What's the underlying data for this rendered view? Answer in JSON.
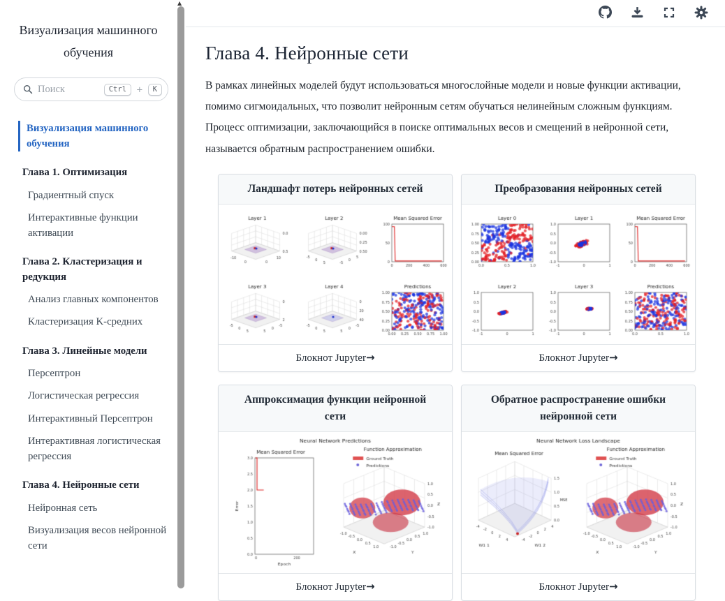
{
  "colors": {
    "accent_blue": "#2465c2",
    "icon": "#3d4856",
    "scrollbar": "#9b9b9b",
    "card_header_bg": "#f7f9fa",
    "card_border": "#d9dee3",
    "scatter_red": "rgba(227,30,36,0.72)",
    "scatter_blue": "rgba(28,52,225,0.72)",
    "mse_line": "#dd2222",
    "surface_red": "rgba(217,70,80,0.8)",
    "surface_blue": "rgba(124,131,232,0.35)",
    "patch_purple": "rgba(148,103,189,0.35)"
  },
  "sidebar": {
    "title": "Визуализация машинного обучения",
    "search": {
      "placeholder": "Поиск",
      "kbd_ctrl": "Ctrl",
      "kbd_plus": "+",
      "kbd_k": "K"
    },
    "sections": [
      {
        "id": "root",
        "items": [
          {
            "id": "ml-visualization",
            "label": "Визуализация машинного обучения",
            "active": true
          }
        ]
      },
      {
        "id": "chapter-1",
        "caption": "Глава 1. Оптимизация",
        "items": [
          {
            "id": "gradient-descent",
            "label": "Градиентный спуск"
          },
          {
            "id": "interactive-activations",
            "label": "Интерактивные функции активации"
          }
        ]
      },
      {
        "id": "chapter-2",
        "caption": "Глава 2. Кластеризация и редукция",
        "items": [
          {
            "id": "pca",
            "label": "Анализ главных компонентов"
          },
          {
            "id": "kmeans",
            "label": "Кластеризация K-средних"
          }
        ]
      },
      {
        "id": "chapter-3",
        "caption": "Глава 3. Линейные модели",
        "items": [
          {
            "id": "perceptron",
            "label": "Персептрон"
          },
          {
            "id": "logistic-regression",
            "label": "Логистическая регрессия"
          },
          {
            "id": "interactive-perceptron",
            "label": "Интерактивный Персептрон"
          },
          {
            "id": "interactive-logistic-regression",
            "label": "Интерактивная логистическая регрессия"
          }
        ]
      },
      {
        "id": "chapter-4",
        "caption": "Глава 4. Нейронные сети",
        "items": [
          {
            "id": "neural-network",
            "label": "Нейронная сеть"
          },
          {
            "id": "nn-weights-visualization",
            "label": "Визуализация весов нейронной сети"
          }
        ]
      }
    ]
  },
  "topbar": {
    "icons": [
      {
        "name": "github-icon"
      },
      {
        "name": "download-icon"
      },
      {
        "name": "fullscreen-icon"
      },
      {
        "name": "settings-gear-icon"
      }
    ]
  },
  "main": {
    "heading": "Глава 4. Нейронные сети",
    "intro": "В рамках линейных моделей будут использоваться многослойные модели и новые функции активации, помимо сигмоидальных, что позволит нейронным сетям обучаться нелинейным сложным функциям. Процесс оптимизации, заключающийся в поиске оптимальных весов и смещений в нейронной сети, называется обратным распространением ошибки."
  },
  "cards": [
    {
      "title": "Ландшафт потерь нейронных сетей"
    },
    {
      "title": "Преобразования нейронных сетей"
    },
    {
      "title": "Аппроксимация функции нейронной сети"
    },
    {
      "title": "Обратное распространение ошибки нейронной сети"
    }
  ],
  "card_footer": {
    "label": "Блокнот Jupyter",
    "arrow": "→"
  },
  "chart_data": [
    {
      "id": "nn-loss-landscape-grid",
      "type": "mixed",
      "layout": "grid",
      "panels": [
        {
          "type": "surface3d",
          "title": "Layer 1",
          "zticks": [
            "0.5",
            "0.0"
          ],
          "xticks": [
            "-10",
            "0"
          ],
          "yticks": [
            "0",
            "10"
          ]
        },
        {
          "type": "surface3d",
          "title": "Layer 2",
          "zticks": [
            "0.50",
            "0.25",
            "0.00"
          ],
          "xticks": [
            "-5",
            "0",
            "5"
          ],
          "yticks": [
            "-5",
            "0",
            "5"
          ]
        },
        {
          "type": "mse",
          "title": "Mean Squared Error",
          "yticks": [
            "0",
            "50",
            "100"
          ],
          "xticks": [
            "0",
            "200",
            "400",
            "600"
          ],
          "path": [
            [
              0.0,
              0.93
            ],
            [
              0.05,
              0.93
            ],
            [
              0.065,
              0.02
            ],
            [
              0.97,
              0.02
            ]
          ]
        },
        {
          "type": "surface3d",
          "title": "Layer 3",
          "zticks": [
            "2",
            "0"
          ],
          "xticks": [
            "-5",
            "0",
            "5"
          ],
          "yticks": [
            "5",
            "0",
            "-5"
          ]
        },
        {
          "type": "surface3d",
          "title": "Layer 4",
          "zticks": [
            "40",
            "20",
            "0"
          ],
          "xticks": [
            "-5",
            "0",
            "5"
          ],
          "yticks": [
            "5",
            "0",
            "-5"
          ],
          "blue_only": true
        },
        {
          "type": "scatter",
          "title": "Predictions",
          "xticks": [
            "0.00",
            "0.25",
            "0.50",
            "0.75",
            "1.00"
          ],
          "yticks": [
            "0.00",
            "0.25",
            "0.50",
            "0.75",
            "1.00"
          ],
          "n": 300,
          "seed": 7
        }
      ]
    },
    {
      "id": "nn-transformations-grid",
      "type": "mixed",
      "layout": "grid",
      "panels": [
        {
          "type": "xor",
          "title": "Layer 0",
          "xticks": [
            "0.0",
            "0.5",
            "1.0"
          ],
          "yticks": [
            "0.00",
            "0.25",
            "0.50",
            "0.75",
            "1.00"
          ],
          "n": 320,
          "seed": 11
        },
        {
          "type": "blob",
          "title": "Layer 1",
          "xticks": [
            "-1",
            "0",
            "1"
          ],
          "yticks": [
            "-1.0",
            "-0.5",
            "0.0",
            "0.5",
            "1.0"
          ],
          "cx": -0.06,
          "cy": -0.05,
          "rx": 0.14,
          "ry": 0.3,
          "rot": -60,
          "n": 170,
          "seed": 5
        },
        {
          "type": "mse",
          "title": "Mean Squared Error",
          "yticks": [
            "0",
            "50",
            "100"
          ],
          "xticks": [
            "0",
            "200",
            "400",
            "600"
          ],
          "path": [
            [
              0.0,
              0.93
            ],
            [
              0.05,
              0.93
            ],
            [
              0.065,
              0.02
            ],
            [
              0.97,
              0.02
            ]
          ]
        },
        {
          "type": "blob",
          "title": "Layer 2",
          "xticks": [
            "-1",
            "0",
            "1"
          ],
          "yticks": [
            "-1.0",
            "-0.5",
            "0.0",
            "0.5",
            "1.0"
          ],
          "cx": -0.18,
          "cy": -0.08,
          "rx": 0.2,
          "ry": 0.06,
          "rot": 20,
          "n": 130,
          "seed": 9
        },
        {
          "type": "blob",
          "title": "Layer 3",
          "xticks": [
            "-1",
            "0",
            "1"
          ],
          "yticks": [
            "-1.0",
            "-0.5",
            "0.0",
            "0.5",
            "1.0"
          ],
          "cx": 0.22,
          "cy": 0.13,
          "rx": 0.13,
          "ry": 0.045,
          "rot": 8,
          "n": 110,
          "seed": 13
        },
        {
          "type": "scatter",
          "title": "Predictions",
          "xticks": [
            "0.0",
            "0.5",
            "1.0"
          ],
          "yticks": [
            "0.00",
            "0.25",
            "0.50",
            "0.75",
            "1.00"
          ],
          "n": 300,
          "seed": 21
        }
      ]
    },
    {
      "id": "nn-function-approximation",
      "type": "mixed",
      "layout": "pair",
      "suptitle": "Neural Network Predictions",
      "panels": [
        {
          "type": "tallmse",
          "title": "Mean Squared Error",
          "ylabel": "Error",
          "xlabel": "Epoch",
          "yticks": [
            "0.0",
            "0.5",
            "1.0",
            "1.5",
            "2.0",
            "2.5",
            "3.0"
          ],
          "xticks": [
            "0",
            "200"
          ],
          "path_values": [
            [
              2,
              3.0
            ],
            [
              10,
              3.0
            ],
            [
              10,
              2.0
            ],
            [
              42,
              2.0
            ]
          ],
          "xmax": 280,
          "ymax": 3.0
        },
        {
          "type": "funcapprox",
          "title": "Function Approximation",
          "legend": [
            {
              "label": "Ground Truth",
              "color": "#e05252"
            },
            {
              "label": "Predictions",
              "color": "#6f66d8"
            }
          ],
          "zticks": [
            "-1.0",
            "-0.5",
            "0.0",
            "0.5",
            "1.0"
          ],
          "xticks": [
            "-1.0",
            "-0.5",
            "0.0",
            "0.5",
            "1.0"
          ],
          "yticks": [
            "-1.0",
            "-0.5",
            "0.0",
            "0.5",
            "1.0"
          ],
          "xlabel": "X",
          "ylabel": "Y",
          "zlabel": "Z"
        }
      ]
    },
    {
      "id": "nn-backpropagation",
      "type": "mixed",
      "layout": "pair",
      "suptitle": "Neural Network Loss Landscape",
      "panels": [
        {
          "type": "losssurface",
          "title": "Mean Squared Error",
          "xlabel": "W1 1",
          "ylabel": "W1 2",
          "zlabel": "MSE",
          "zticks": [
            "0.0",
            "0.5",
            "1.0",
            "1.5"
          ],
          "xticks": [
            "-4",
            "-2",
            "0",
            "2",
            "4"
          ],
          "yticks": [
            "-4",
            "-2",
            "0",
            "2",
            "4"
          ]
        },
        {
          "type": "funcapprox",
          "title": "Function Approximation",
          "legend": [
            {
              "label": "Ground Truth",
              "color": "#e05252"
            },
            {
              "label": "Predictions",
              "color": "#6f66d8"
            }
          ],
          "zticks": [
            "-1.0",
            "-0.5",
            "0.0",
            "0.5",
            "1.0"
          ],
          "xticks": [
            "-1.0",
            "-0.5",
            "0.0",
            "0.5",
            "1.0"
          ],
          "yticks": [
            "-1.0",
            "-0.5",
            "0.0",
            "0.5",
            "1.0"
          ],
          "xlabel": "X",
          "ylabel": "Y",
          "zlabel": "Z"
        }
      ]
    }
  ]
}
